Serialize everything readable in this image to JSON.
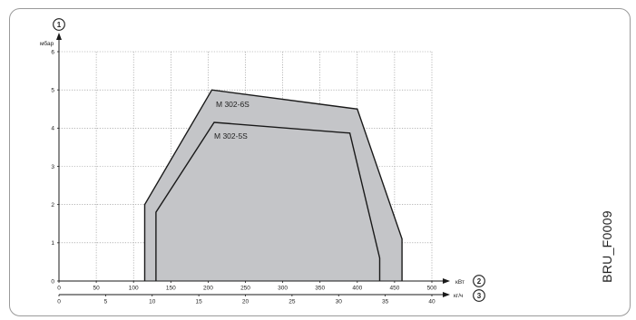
{
  "reference_code": "BRU_F0009",
  "chart_data": {
    "type": "area",
    "y_axis": {
      "marker": "1",
      "unit": "мбар",
      "range": [
        0,
        6
      ],
      "ticks": [
        0,
        1,
        2,
        3,
        4,
        5,
        6
      ]
    },
    "x_axis_power": {
      "marker": "2",
      "unit": "кВт",
      "range": [
        0,
        500
      ],
      "ticks": [
        0,
        50,
        100,
        150,
        200,
        250,
        300,
        350,
        400,
        450,
        500
      ]
    },
    "x_axis_flow": {
      "marker": "3",
      "unit": "кг/ч",
      "range": [
        0,
        40
      ],
      "ticks": [
        0,
        5,
        10,
        15,
        20,
        25,
        30,
        35,
        40
      ]
    },
    "grid": true,
    "series": [
      {
        "name": "M 302-6S",
        "points": [
          [
            115,
            0
          ],
          [
            115,
            2
          ],
          [
            205,
            5
          ],
          [
            400,
            4.5
          ],
          [
            460,
            1.1
          ],
          [
            460,
            0
          ]
        ]
      },
      {
        "name": "M 302-5S",
        "points": [
          [
            130,
            0
          ],
          [
            130,
            1.8
          ],
          [
            208,
            4.15
          ],
          [
            390,
            3.87
          ],
          [
            430,
            0.6
          ],
          [
            430,
            0
          ]
        ]
      }
    ],
    "colors": {
      "fill": "#c4c5c8",
      "line": "#1a1a1a",
      "grid": "#8a8a8a"
    }
  }
}
